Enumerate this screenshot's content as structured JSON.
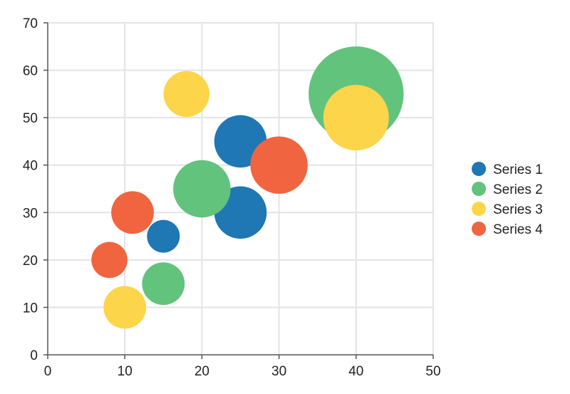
{
  "chart_data": {
    "type": "bubble",
    "title": "",
    "xlabel": "",
    "ylabel": "",
    "xlim": [
      0,
      50
    ],
    "ylim": [
      0,
      70
    ],
    "x_ticks": [
      0,
      10,
      20,
      30,
      40,
      50
    ],
    "y_ticks": [
      0,
      10,
      20,
      30,
      40,
      50,
      60,
      70
    ],
    "grid": true,
    "legend_position": "right",
    "size_unit": "relative bubble size",
    "series": [
      {
        "name": "Series 1",
        "color": "#1f77b4",
        "points": [
          {
            "x": 15,
            "y": 25,
            "size": 1.0
          },
          {
            "x": 25,
            "y": 30,
            "size": 1.6
          },
          {
            "x": 25,
            "y": 45,
            "size": 1.6
          }
        ]
      },
      {
        "name": "Series 2",
        "color": "#62c37c",
        "points": [
          {
            "x": 15,
            "y": 15,
            "size": 1.3
          },
          {
            "x": 20,
            "y": 35,
            "size": 1.75
          },
          {
            "x": 40,
            "y": 55,
            "size": 2.9
          }
        ]
      },
      {
        "name": "Series 3",
        "color": "#fcd54a",
        "points": [
          {
            "x": 10,
            "y": 10,
            "size": 1.3
          },
          {
            "x": 18,
            "y": 55,
            "size": 1.4
          },
          {
            "x": 40,
            "y": 50,
            "size": 2.0
          }
        ]
      },
      {
        "name": "Series 4",
        "color": "#f06440",
        "points": [
          {
            "x": 8,
            "y": 20,
            "size": 1.1
          },
          {
            "x": 11,
            "y": 30,
            "size": 1.3
          },
          {
            "x": 30,
            "y": 40,
            "size": 1.75
          }
        ]
      }
    ]
  }
}
